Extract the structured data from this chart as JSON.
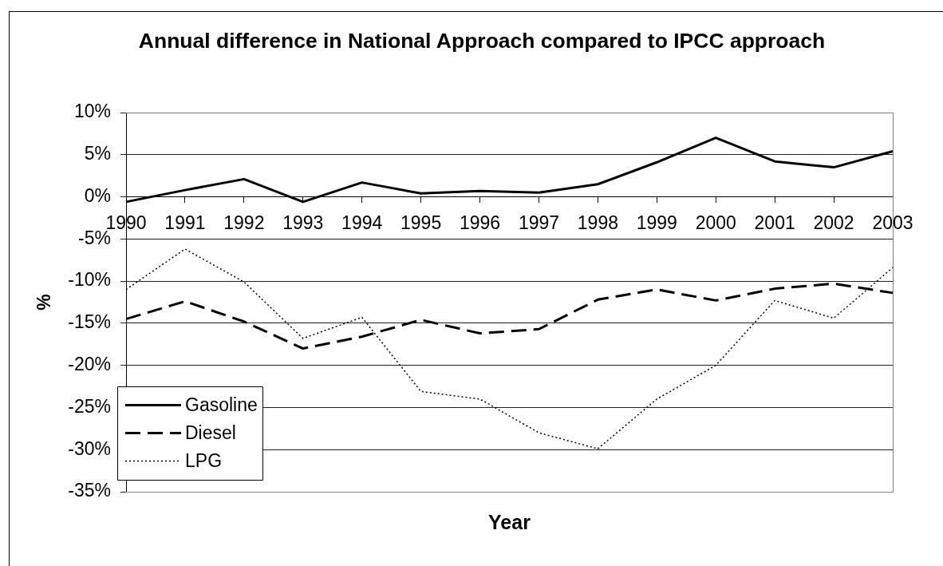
{
  "chart_data": {
    "type": "line",
    "title": "Annual difference in National Approach compared to IPCC approach",
    "xlabel": "Year",
    "ylabel": "%",
    "categories": [
      "1990",
      "1991",
      "1992",
      "1993",
      "1994",
      "1995",
      "1996",
      "1997",
      "1998",
      "1999",
      "2000",
      "2001",
      "2002",
      "2003"
    ],
    "series": [
      {
        "name": "Gasoline",
        "color": "#000000",
        "line_style": "solid",
        "values": [
          -0.6,
          0.8,
          2.1,
          -0.6,
          1.7,
          0.4,
          0.7,
          0.5,
          1.5,
          4.1,
          7.0,
          4.2,
          3.5,
          5.4
        ]
      },
      {
        "name": "Diesel",
        "color": "#000000",
        "line_style": "dashed",
        "values": [
          -14.5,
          -12.4,
          -14.8,
          -18.0,
          -16.6,
          -14.6,
          -16.2,
          -15.7,
          -12.2,
          -11.0,
          -12.3,
          -10.9,
          -10.3,
          -11.4
        ]
      },
      {
        "name": "LPG",
        "color": "#000000",
        "line_style": "dotted",
        "values": [
          -11.0,
          -6.2,
          -10.1,
          -16.8,
          -14.3,
          -23.1,
          -24.0,
          -28.0,
          -29.9,
          -24.0,
          -20.0,
          -12.3,
          -14.4,
          -8.4
        ]
      }
    ],
    "ylim": [
      -35,
      10
    ],
    "yticks": [
      {
        "value": -35,
        "label": "-35%"
      },
      {
        "value": -30,
        "label": "-30%"
      },
      {
        "value": -25,
        "label": "-25%"
      },
      {
        "value": -20,
        "label": "-20%"
      },
      {
        "value": -15,
        "label": "-15%"
      },
      {
        "value": -10,
        "label": "-10%"
      },
      {
        "value": -5,
        "label": "-5%"
      },
      {
        "value": 0,
        "label": "0%"
      },
      {
        "value": 5,
        "label": "5%"
      },
      {
        "value": 10,
        "label": "10%"
      }
    ],
    "grid": "y",
    "legend": "bottom left",
    "marker": "none"
  }
}
